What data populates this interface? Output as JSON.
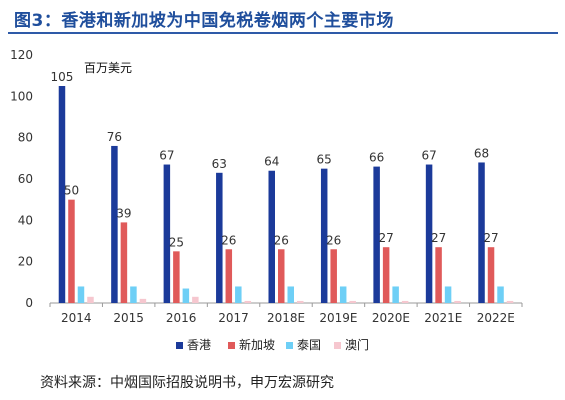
{
  "title": "图3：香港和新加坡为中国免税卷烟两个主要市场",
  "source": "资料来源：中烟国际招股说明书，申万宏源研究",
  "chart_data": {
    "type": "bar",
    "unit_label": "百万美元",
    "categories": [
      "2014",
      "2015",
      "2016",
      "2017",
      "2018E",
      "2019E",
      "2020E",
      "2021E",
      "2022E"
    ],
    "ylim": [
      0,
      120
    ],
    "yticks": [
      0,
      20,
      40,
      60,
      80,
      100,
      120
    ],
    "grid": false,
    "legend_position": "bottom",
    "series": [
      {
        "name": "香港",
        "color": "#1b3a9a",
        "values": [
          105,
          76,
          67,
          63,
          64,
          65,
          66,
          67,
          68
        ],
        "show_labels": true
      },
      {
        "name": "新加坡",
        "color": "#e05a5a",
        "values": [
          50,
          39,
          25,
          26,
          26,
          26,
          27,
          27,
          27
        ],
        "show_labels": true
      },
      {
        "name": "泰国",
        "color": "#6ecff6",
        "values": [
          8,
          8,
          7,
          8,
          8,
          8,
          8,
          8,
          8
        ],
        "show_labels": false
      },
      {
        "name": "澳门",
        "color": "#f6c7cf",
        "values": [
          3,
          2,
          3,
          1,
          1,
          1,
          1,
          1,
          1
        ],
        "show_labels": false
      }
    ]
  }
}
